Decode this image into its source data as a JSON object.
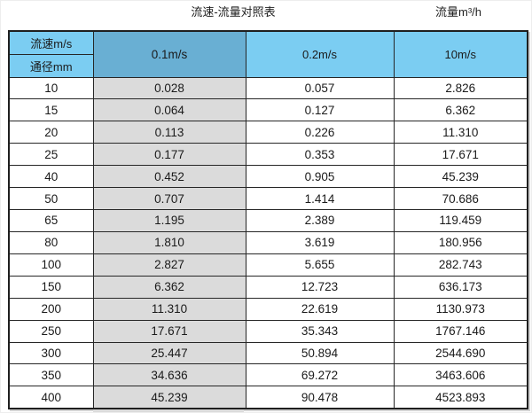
{
  "page": {
    "title_left": "流速-流量对照表",
    "title_right": "流量m³/h"
  },
  "table": {
    "corner_top": "流速m/s",
    "corner_bottom": "通径mm",
    "velocity_headers": [
      "0.1m/s",
      "0.2m/s",
      "10m/s"
    ],
    "highlighted_column": "0.1m/s",
    "rows": [
      {
        "diameter": "10",
        "values": [
          "0.028",
          "0.057",
          "2.826"
        ]
      },
      {
        "diameter": "15",
        "values": [
          "0.064",
          "0.127",
          "6.362"
        ]
      },
      {
        "diameter": "20",
        "values": [
          "0.113",
          "0.226",
          "11.310"
        ]
      },
      {
        "diameter": "25",
        "values": [
          "0.177",
          "0.353",
          "17.671"
        ]
      },
      {
        "diameter": "40",
        "values": [
          "0.452",
          "0.905",
          "45.239"
        ]
      },
      {
        "diameter": "50",
        "values": [
          "0.707",
          "1.414",
          "70.686"
        ]
      },
      {
        "diameter": "65",
        "values": [
          "1.195",
          "2.389",
          "119.459"
        ]
      },
      {
        "diameter": "80",
        "values": [
          "1.810",
          "3.619",
          "180.956"
        ]
      },
      {
        "diameter": "100",
        "values": [
          "2.827",
          "5.655",
          "282.743"
        ]
      },
      {
        "diameter": "150",
        "values": [
          "6.362",
          "12.723",
          "636.173"
        ]
      },
      {
        "diameter": "200",
        "values": [
          "11.310",
          "22.619",
          "1130.973"
        ]
      },
      {
        "diameter": "250",
        "values": [
          "17.671",
          "35.343",
          "1767.146"
        ]
      },
      {
        "diameter": "300",
        "values": [
          "25.447",
          "50.894",
          "2544.690"
        ]
      },
      {
        "diameter": "350",
        "values": [
          "34.636",
          "69.272",
          "3463.606"
        ]
      },
      {
        "diameter": "400",
        "values": [
          "45.239",
          "90.478",
          "4523.893"
        ]
      }
    ]
  },
  "colors": {
    "header_blue": "#7BCDF2",
    "highlight_header_blue": "#69AFD3",
    "highlight_column_gray": "#DBDBDB",
    "border_dark": "#262626",
    "text_dark": "#1A1A1A"
  },
  "chart_data": {
    "type": "table",
    "title": "流速-流量对照表",
    "value_unit": "流量m³/h",
    "row_header": "通径mm",
    "column_header": "流速m/s",
    "columns": [
      "0.1m/s",
      "0.2m/s",
      "10m/s"
    ],
    "highlighted_column": "0.1m/s",
    "rows": [
      {
        "diameter_mm": 10,
        "flow_m3h": [
          0.028,
          0.057,
          2.826
        ]
      },
      {
        "diameter_mm": 15,
        "flow_m3h": [
          0.064,
          0.127,
          6.362
        ]
      },
      {
        "diameter_mm": 20,
        "flow_m3h": [
          0.113,
          0.226,
          11.31
        ]
      },
      {
        "diameter_mm": 25,
        "flow_m3h": [
          0.177,
          0.353,
          17.671
        ]
      },
      {
        "diameter_mm": 40,
        "flow_m3h": [
          0.452,
          0.905,
          45.239
        ]
      },
      {
        "diameter_mm": 50,
        "flow_m3h": [
          0.707,
          1.414,
          70.686
        ]
      },
      {
        "diameter_mm": 65,
        "flow_m3h": [
          1.195,
          2.389,
          119.459
        ]
      },
      {
        "diameter_mm": 80,
        "flow_m3h": [
          1.81,
          3.619,
          180.956
        ]
      },
      {
        "diameter_mm": 100,
        "flow_m3h": [
          2.827,
          5.655,
          282.743
        ]
      },
      {
        "diameter_mm": 150,
        "flow_m3h": [
          6.362,
          12.723,
          636.173
        ]
      },
      {
        "diameter_mm": 200,
        "flow_m3h": [
          11.31,
          22.619,
          1130.973
        ]
      },
      {
        "diameter_mm": 250,
        "flow_m3h": [
          17.671,
          35.343,
          1767.146
        ]
      },
      {
        "diameter_mm": 300,
        "flow_m3h": [
          25.447,
          50.894,
          2544.69
        ]
      },
      {
        "diameter_mm": 350,
        "flow_m3h": [
          34.636,
          69.272,
          3463.606
        ]
      },
      {
        "diameter_mm": 400,
        "flow_m3h": [
          45.239,
          90.478,
          4523.893
        ]
      }
    ]
  }
}
